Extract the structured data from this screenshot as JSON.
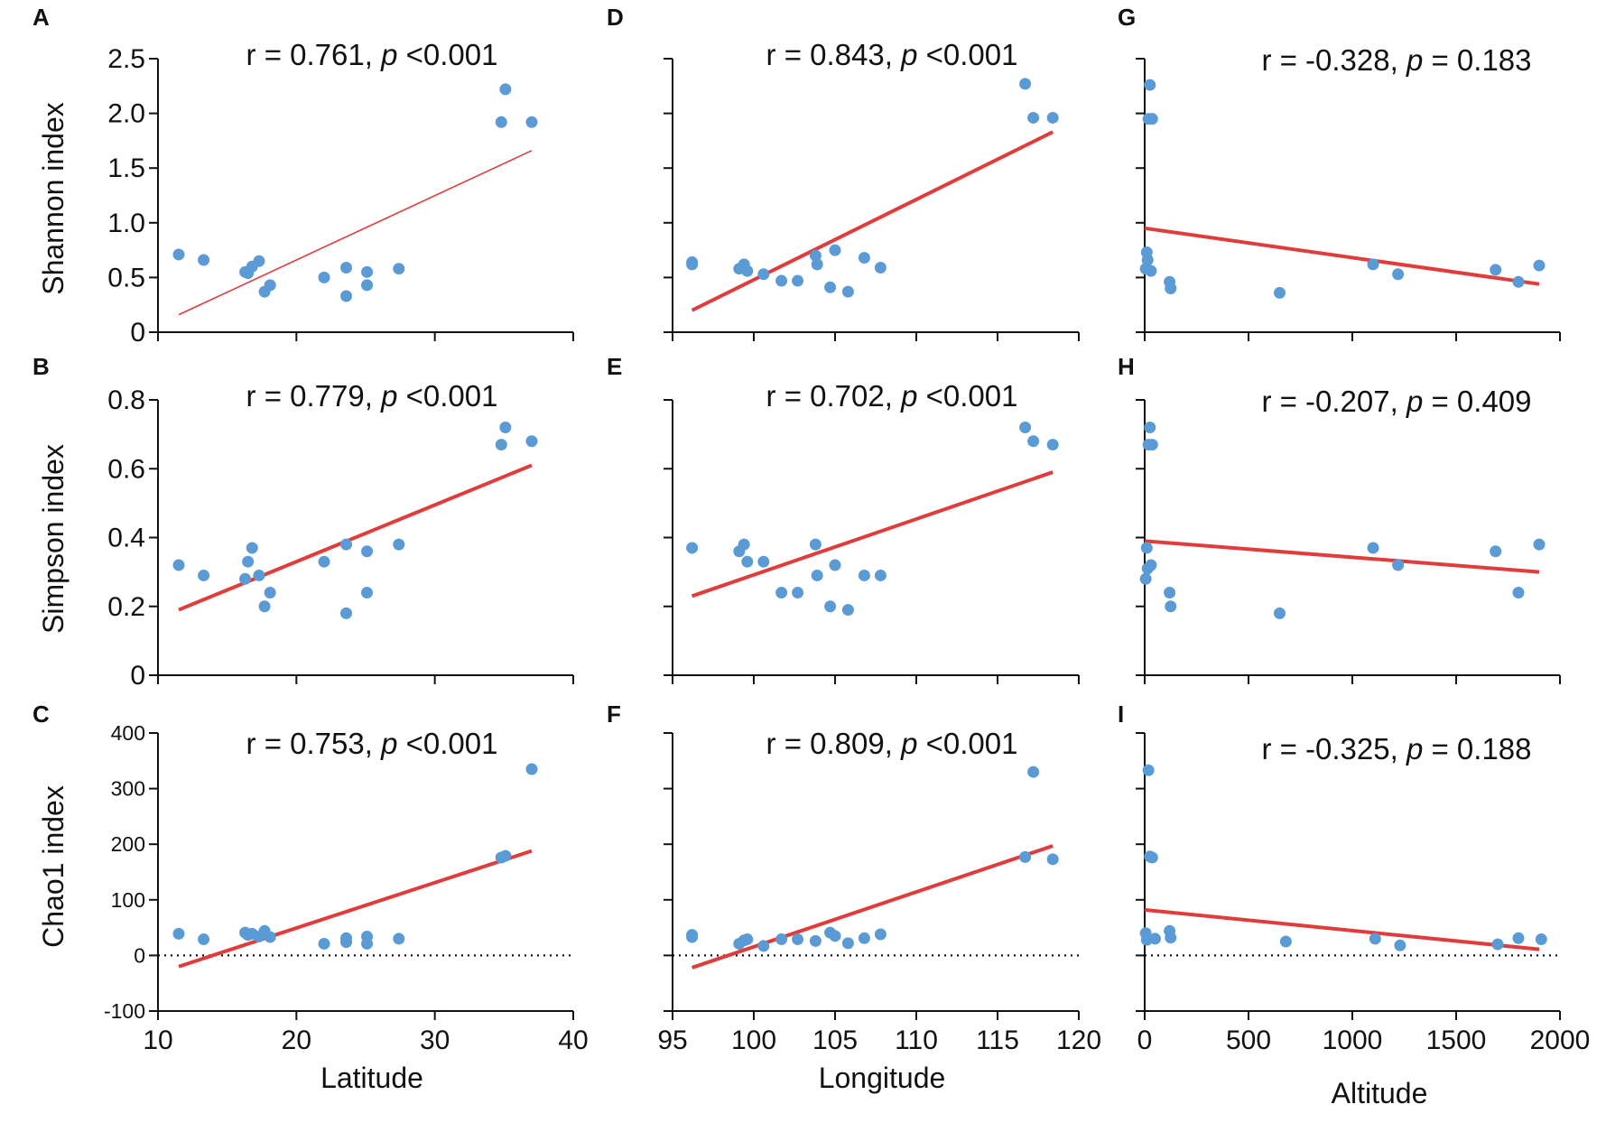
{
  "colors": {
    "point": "#5b9bd5",
    "fit": "#e03c3c",
    "axis": "#111111",
    "zero_line": "#111111"
  },
  "x_axes": [
    {
      "name": "latitude",
      "label": "Latitude",
      "ticks": [
        10,
        20,
        30,
        40
      ]
    },
    {
      "name": "longitude",
      "label": "Longitude",
      "ticks": [
        95,
        100,
        105,
        110,
        115,
        120
      ]
    },
    {
      "name": "altitude",
      "label": "Altitude",
      "ticks": [
        0,
        500,
        1000,
        1500,
        2000
      ]
    }
  ],
  "y_axes": [
    {
      "name": "shannon",
      "label": "Shannon index",
      "ticks": [
        0,
        0.5,
        1.0,
        1.5,
        2.0,
        2.5
      ],
      "tick_labels": [
        "0",
        "0.5",
        "1.0",
        "1.5",
        "2.0",
        "2.5"
      ]
    },
    {
      "name": "simpson",
      "label": "Simpson index",
      "ticks": [
        0,
        0.2,
        0.4,
        0.6,
        0.8
      ],
      "tick_labels": [
        "0",
        "0.2",
        "0.4",
        "0.6",
        "0.8"
      ]
    },
    {
      "name": "chao1",
      "label": "Chao1 index",
      "ticks": [
        -100,
        0,
        100,
        200,
        300,
        400
      ],
      "tick_labels": [
        "-100",
        "0",
        "100",
        "200",
        "300",
        "400"
      ]
    }
  ],
  "chart_data": [
    {
      "panel": "A",
      "type": "scatter",
      "x_var": "Latitude",
      "y_var": "Shannon index",
      "xlim": [
        10,
        40
      ],
      "ylim": [
        0,
        2.5
      ],
      "r_text": "r = 0.761, ",
      "p_italic": "p",
      "p_text": " <0.001",
      "points": [
        [
          11.5,
          0.71
        ],
        [
          13.3,
          0.66
        ],
        [
          16.3,
          0.55
        ],
        [
          16.5,
          0.54
        ],
        [
          16.8,
          0.6
        ],
        [
          17.3,
          0.65
        ],
        [
          17.7,
          0.37
        ],
        [
          18.1,
          0.43
        ],
        [
          22,
          0.5
        ],
        [
          23.6,
          0.59
        ],
        [
          23.6,
          0.33
        ],
        [
          25.1,
          0.55
        ],
        [
          25.1,
          0.43
        ],
        [
          27.4,
          0.58
        ],
        [
          34.8,
          1.92
        ],
        [
          35.1,
          2.22
        ],
        [
          37,
          1.92
        ]
      ],
      "fit": [
        [
          11.5,
          0.16
        ],
        [
          37,
          1.66
        ]
      ]
    },
    {
      "panel": "D",
      "type": "scatter",
      "x_var": "Longitude",
      "y_var": "Shannon index",
      "xlim": [
        95,
        120
      ],
      "ylim": [
        0,
        2.5
      ],
      "r_text": "r = 0.843, ",
      "p_italic": "p",
      "p_text": " <0.001",
      "points": [
        [
          96.2,
          0.64
        ],
        [
          96.2,
          0.62
        ],
        [
          99.1,
          0.58
        ],
        [
          99.4,
          0.62
        ],
        [
          99.6,
          0.56
        ],
        [
          100.6,
          0.53
        ],
        [
          101.7,
          0.47
        ],
        [
          102.7,
          0.47
        ],
        [
          103.8,
          0.7
        ],
        [
          103.9,
          0.62
        ],
        [
          104.7,
          0.41
        ],
        [
          105,
          0.75
        ],
        [
          105.8,
          0.37
        ],
        [
          106.8,
          0.68
        ],
        [
          107.8,
          0.59
        ],
        [
          116.7,
          2.27
        ],
        [
          117.2,
          1.96
        ],
        [
          118.4,
          1.96
        ]
      ],
      "fit": [
        [
          96.2,
          0.2
        ],
        [
          118.4,
          1.83
        ]
      ]
    },
    {
      "panel": "G",
      "type": "scatter",
      "x_var": "Altitude",
      "y_var": "Shannon index",
      "xlim": [
        0,
        2000
      ],
      "ylim": [
        0,
        2.5
      ],
      "r_text": "r = -0.328, ",
      "p_italic": "p",
      "p_text": " = 0.183",
      "points": [
        [
          5,
          0.58
        ],
        [
          10,
          0.73
        ],
        [
          14,
          0.66
        ],
        [
          18,
          1.95
        ],
        [
          25,
          2.26
        ],
        [
          30,
          0.56
        ],
        [
          36,
          1.95
        ],
        [
          120,
          0.46
        ],
        [
          125,
          0.4
        ],
        [
          650,
          0.36
        ],
        [
          1100,
          0.62
        ],
        [
          1220,
          0.53
        ],
        [
          1690,
          0.57
        ],
        [
          1800,
          0.46
        ],
        [
          1900,
          0.61
        ]
      ],
      "fit": [
        [
          0,
          0.95
        ],
        [
          1900,
          0.44
        ]
      ]
    },
    {
      "panel": "B",
      "type": "scatter",
      "x_var": "Latitude",
      "y_var": "Simpson index",
      "xlim": [
        10,
        40
      ],
      "ylim": [
        0,
        0.8
      ],
      "r_text": "r = 0.779, ",
      "p_italic": "p",
      "p_text": " <0.001",
      "points": [
        [
          11.5,
          0.32
        ],
        [
          13.3,
          0.29
        ],
        [
          16.3,
          0.28
        ],
        [
          16.5,
          0.33
        ],
        [
          16.8,
          0.37
        ],
        [
          17.3,
          0.29
        ],
        [
          17.7,
          0.2
        ],
        [
          18.1,
          0.24
        ],
        [
          22,
          0.33
        ],
        [
          23.6,
          0.38
        ],
        [
          23.6,
          0.18
        ],
        [
          25.1,
          0.36
        ],
        [
          25.1,
          0.24
        ],
        [
          27.4,
          0.38
        ],
        [
          34.8,
          0.67
        ],
        [
          35.1,
          0.72
        ],
        [
          37,
          0.68
        ]
      ],
      "fit": [
        [
          11.5,
          0.19
        ],
        [
          37,
          0.61
        ]
      ]
    },
    {
      "panel": "E",
      "type": "scatter",
      "x_var": "Longitude",
      "y_var": "Simpson index",
      "xlim": [
        95,
        120
      ],
      "ylim": [
        0,
        0.8
      ],
      "r_text": "r = 0.702, ",
      "p_italic": "p",
      "p_text": " <0.001",
      "points": [
        [
          96.2,
          0.37
        ],
        [
          99.1,
          0.36
        ],
        [
          99.4,
          0.38
        ],
        [
          99.6,
          0.33
        ],
        [
          100.6,
          0.33
        ],
        [
          101.7,
          0.24
        ],
        [
          102.7,
          0.24
        ],
        [
          103.8,
          0.38
        ],
        [
          103.9,
          0.29
        ],
        [
          104.7,
          0.2
        ],
        [
          105,
          0.32
        ],
        [
          105.8,
          0.19
        ],
        [
          106.8,
          0.29
        ],
        [
          107.8,
          0.29
        ],
        [
          116.7,
          0.72
        ],
        [
          117.2,
          0.68
        ],
        [
          118.4,
          0.67
        ]
      ],
      "fit": [
        [
          96.2,
          0.23
        ],
        [
          118.4,
          0.59
        ]
      ]
    },
    {
      "panel": "H",
      "type": "scatter",
      "x_var": "Altitude",
      "y_var": "Simpson index",
      "xlim": [
        0,
        2000
      ],
      "ylim": [
        0,
        0.8
      ],
      "r_text": "r = -0.207, ",
      "p_italic": "p",
      "p_text": " = 0.409",
      "points": [
        [
          5,
          0.28
        ],
        [
          10,
          0.37
        ],
        [
          14,
          0.31
        ],
        [
          18,
          0.67
        ],
        [
          25,
          0.72
        ],
        [
          30,
          0.32
        ],
        [
          36,
          0.67
        ],
        [
          120,
          0.24
        ],
        [
          125,
          0.2
        ],
        [
          650,
          0.18
        ],
        [
          1100,
          0.37
        ],
        [
          1220,
          0.32
        ],
        [
          1690,
          0.36
        ],
        [
          1800,
          0.24
        ],
        [
          1900,
          0.38
        ]
      ],
      "fit": [
        [
          0,
          0.39
        ],
        [
          1900,
          0.3
        ]
      ]
    },
    {
      "panel": "C",
      "type": "scatter",
      "x_var": "Latitude",
      "y_var": "Chao1 index",
      "xlim": [
        10,
        40
      ],
      "ylim": [
        -100,
        400
      ],
      "r_text": "r = 0.753, ",
      "p_italic": "p",
      "p_text": " <0.001",
      "points": [
        [
          11.5,
          39
        ],
        [
          13.3,
          29
        ],
        [
          16.3,
          41
        ],
        [
          16.5,
          37
        ],
        [
          16.8,
          39
        ],
        [
          17.3,
          34
        ],
        [
          17.7,
          44
        ],
        [
          18.1,
          33
        ],
        [
          22,
          21
        ],
        [
          23.6,
          31
        ],
        [
          23.6,
          24
        ],
        [
          25.1,
          34
        ],
        [
          25.1,
          21
        ],
        [
          27.4,
          30
        ],
        [
          34.8,
          176
        ],
        [
          35.1,
          179
        ],
        [
          37,
          335
        ]
      ],
      "fit": [
        [
          11.5,
          -20
        ],
        [
          37,
          188
        ]
      ]
    },
    {
      "panel": "F",
      "type": "scatter",
      "x_var": "Longitude",
      "y_var": "Chao1 index",
      "xlim": [
        95,
        120
      ],
      "ylim": [
        -100,
        400
      ],
      "r_text": "r = 0.809, ",
      "p_italic": "p",
      "p_text": " <0.001",
      "points": [
        [
          96.2,
          37
        ],
        [
          96.2,
          33
        ],
        [
          99.1,
          21
        ],
        [
          99.4,
          27
        ],
        [
          99.6,
          29
        ],
        [
          100.6,
          17
        ],
        [
          101.7,
          29
        ],
        [
          102.7,
          29
        ],
        [
          103.8,
          26
        ],
        [
          104.7,
          41
        ],
        [
          105,
          35
        ],
        [
          105.8,
          22
        ],
        [
          106.8,
          31
        ],
        [
          107.8,
          38
        ],
        [
          116.7,
          177
        ],
        [
          117.2,
          330
        ],
        [
          118.4,
          173
        ]
      ],
      "fit": [
        [
          96.2,
          -22
        ],
        [
          118.4,
          197
        ]
      ]
    },
    {
      "panel": "I",
      "type": "scatter",
      "x_var": "Altitude",
      "y_var": "Chao1 index",
      "xlim": [
        0,
        2000
      ],
      "ylim": [
        -100,
        400
      ],
      "r_text": "r = -0.325, ",
      "p_italic": "p",
      "p_text": " = 0.188",
      "points": [
        [
          5,
          40
        ],
        [
          10,
          28
        ],
        [
          18,
          333
        ],
        [
          25,
          178
        ],
        [
          36,
          176
        ],
        [
          50,
          30
        ],
        [
          120,
          44
        ],
        [
          125,
          32
        ],
        [
          680,
          25
        ],
        [
          1110,
          30
        ],
        [
          1230,
          18
        ],
        [
          1700,
          20
        ],
        [
          1800,
          31
        ],
        [
          1910,
          29
        ]
      ],
      "fit": [
        [
          0,
          82
        ],
        [
          1900,
          11
        ]
      ]
    }
  ]
}
